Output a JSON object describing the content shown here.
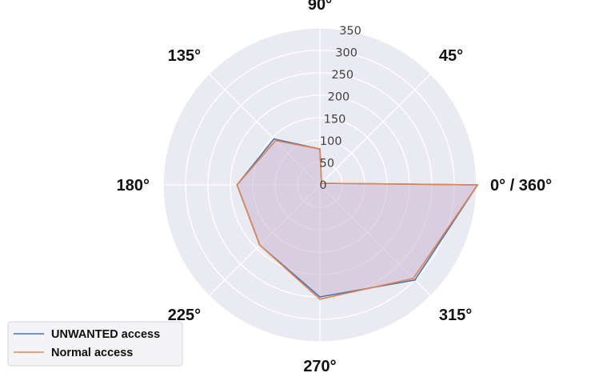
{
  "chart_data": {
    "type": "radar",
    "angle_unit": "degrees",
    "angles": [
      0,
      45,
      90,
      135,
      180,
      225,
      270,
      315
    ],
    "angle_tick_labels": [
      "0° / 360°",
      "45°",
      "90°",
      "135°",
      "180°",
      "225°",
      "270°",
      "315°"
    ],
    "radial_ticks": [
      0,
      50,
      100,
      150,
      200,
      250,
      300,
      350
    ],
    "rlim": [
      0,
      350
    ],
    "series": [
      {
        "name": "UNWANTED access",
        "color": "#4c72b0",
        "values": [
          352,
          5,
          80,
          145,
          185,
          190,
          250,
          300
        ]
      },
      {
        "name": "Normal access",
        "color": "#dd8452",
        "values": [
          352,
          5,
          80,
          140,
          185,
          190,
          255,
          295
        ]
      }
    ],
    "fill_color": "#c9b5cf",
    "grid": true,
    "legend": {
      "placement": "lower-left"
    }
  }
}
